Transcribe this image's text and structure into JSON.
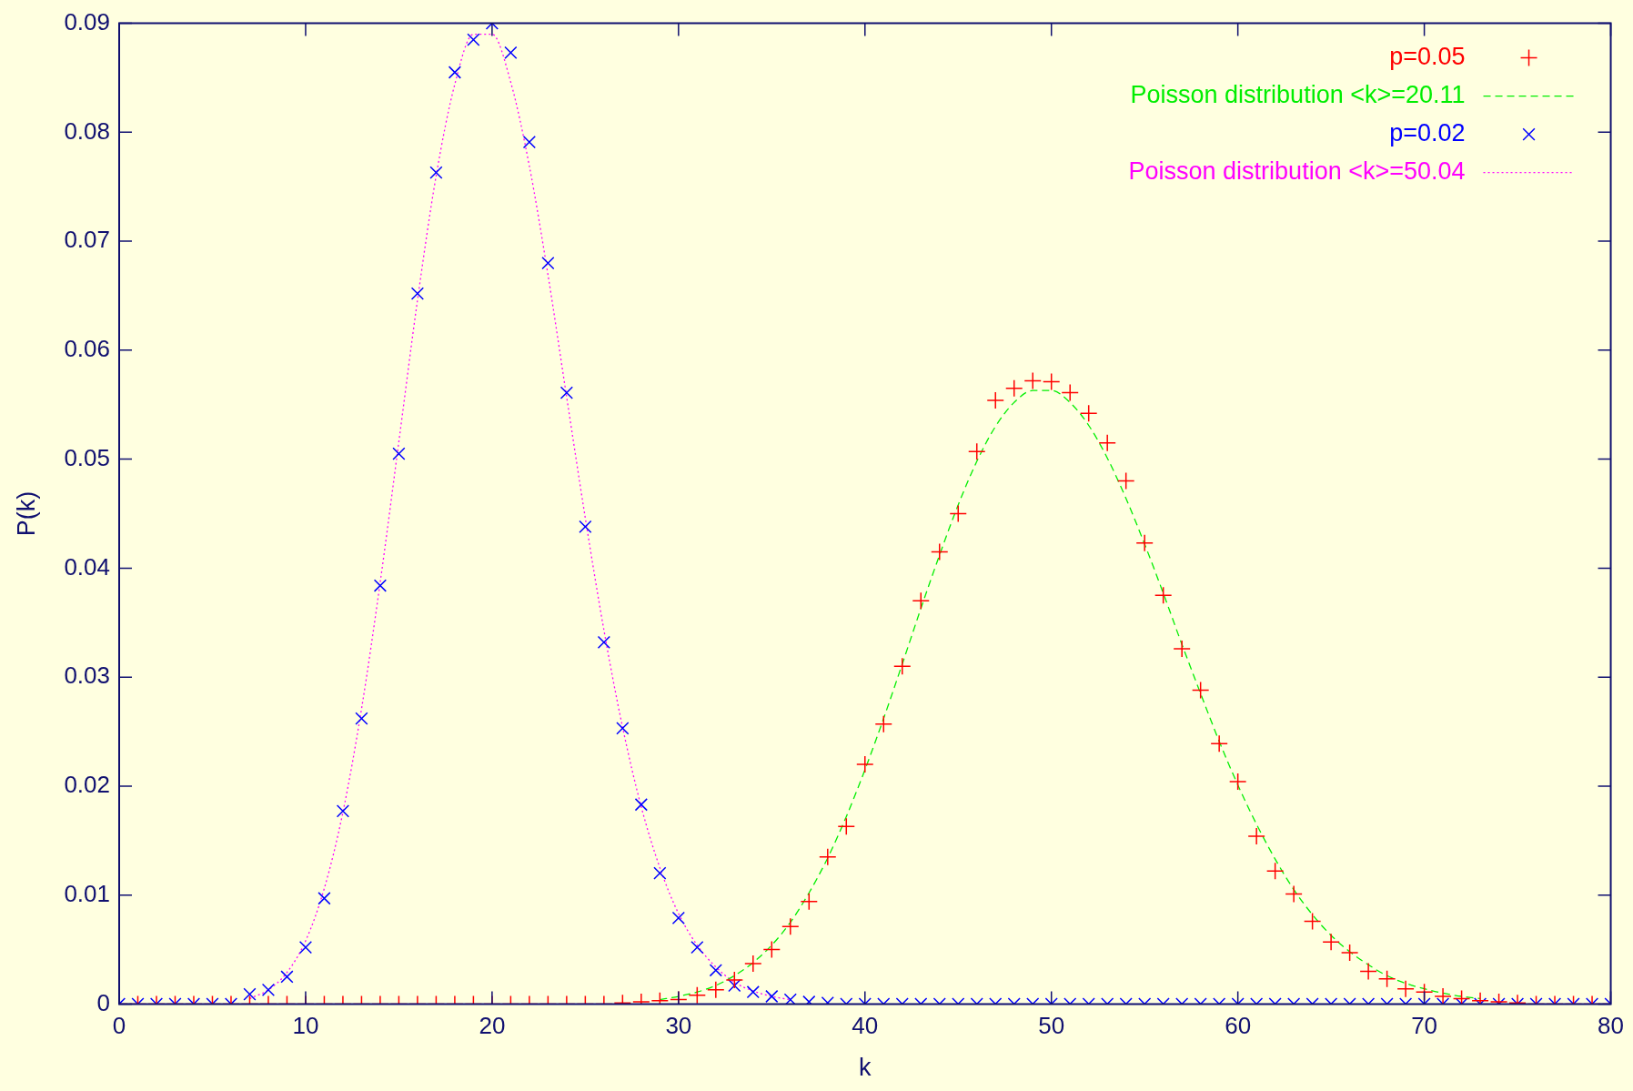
{
  "chart_data": {
    "type": "scatter",
    "xlabel": "k",
    "ylabel": "P(k)",
    "x": [
      0,
      1,
      2,
      3,
      4,
      5,
      6,
      7,
      8,
      9,
      10,
      11,
      12,
      13,
      14,
      15,
      16,
      17,
      18,
      19,
      20,
      21,
      22,
      23,
      24,
      25,
      26,
      27,
      28,
      29,
      30,
      31,
      32,
      33,
      34,
      35,
      36,
      37,
      38,
      39,
      40,
      41,
      42,
      43,
      44,
      45,
      46,
      47,
      48,
      49,
      50,
      51,
      52,
      53,
      54,
      55,
      56,
      57,
      58,
      59,
      60,
      61,
      62,
      63,
      64,
      65,
      66,
      67,
      68,
      69,
      70,
      71,
      72,
      73,
      74,
      75,
      76,
      77,
      78,
      79,
      80
    ],
    "series": [
      {
        "name": "p=0.05",
        "marker": "cross",
        "color": "#ff0000",
        "values": [
          0,
          0,
          0,
          0,
          0,
          0,
          0,
          0,
          0,
          0,
          0,
          0,
          0,
          0,
          0,
          0,
          0,
          0,
          0,
          0,
          0,
          0,
          0,
          0,
          0,
          0,
          0,
          0.0001,
          0.0002,
          0.0003,
          0.0004,
          0.0008,
          0.0013,
          0.0022,
          0.0037,
          0.005,
          0.0071,
          0.0094,
          0.0135,
          0.0163,
          0.022,
          0.0257,
          0.031,
          0.037,
          0.0415,
          0.045,
          0.0507,
          0.0554,
          0.0565,
          0.0572,
          0.0571,
          0.0561,
          0.0542,
          0.0515,
          0.048,
          0.0423,
          0.0375,
          0.0326,
          0.0288,
          0.0239,
          0.0204,
          0.0154,
          0.0122,
          0.0101,
          0.0076,
          0.0057,
          0.0047,
          0.003,
          0.0023,
          0.0014,
          0.0011,
          0.0007,
          0.0005,
          0.0003,
          0.0002,
          0.0001,
          0,
          0,
          0,
          0,
          0
        ]
      },
      {
        "name": "Poisson distribution <k>=20.11",
        "type": "line",
        "marker": "none",
        "line_style": "dashed",
        "color": "#00ee00",
        "x": [
          29,
          30,
          31,
          32,
          33,
          34,
          35,
          36,
          37,
          38,
          39,
          40,
          41,
          42,
          43,
          44,
          45,
          46,
          47,
          48,
          49,
          50,
          51,
          52,
          53,
          54,
          55,
          56,
          57,
          58,
          59,
          60,
          61,
          62,
          63,
          64,
          65,
          66,
          67,
          68,
          69,
          70,
          71,
          72,
          73
        ],
        "values": [
          0.0004,
          0.0007,
          0.0011,
          0.0017,
          0.0026,
          0.0038,
          0.0054,
          0.0075,
          0.0102,
          0.0134,
          0.0172,
          0.0215,
          0.0262,
          0.0312,
          0.0363,
          0.0412,
          0.0458,
          0.0498,
          0.053,
          0.0552,
          0.0563,
          0.0563,
          0.0552,
          0.0531,
          0.0501,
          0.0464,
          0.0422,
          0.0377,
          0.033,
          0.0285,
          0.0241,
          0.0201,
          0.0165,
          0.0133,
          0.0105,
          0.0082,
          0.0063,
          0.0048,
          0.0036,
          0.0026,
          0.0019,
          0.0014,
          0.001,
          0.0007,
          0.0005
        ]
      },
      {
        "name": "p=0.02",
        "marker": "x",
        "color": "#0000ff",
        "values": [
          0,
          0,
          0,
          0,
          0,
          0,
          0,
          0.0009,
          0.0013,
          0.0025,
          0.0052,
          0.0097,
          0.0177,
          0.0262,
          0.0384,
          0.0505,
          0.0652,
          0.0763,
          0.0855,
          0.0885,
          0.09,
          0.0873,
          0.0791,
          0.068,
          0.0561,
          0.0438,
          0.0332,
          0.0253,
          0.0183,
          0.012,
          0.0079,
          0.0052,
          0.0031,
          0.0017,
          0.0011,
          0.0007,
          0.0004,
          0.0002,
          0.0001,
          0,
          0,
          0,
          0,
          0,
          0,
          0,
          0,
          0,
          0,
          0,
          0,
          0,
          0,
          0,
          0,
          0,
          0,
          0,
          0,
          0,
          0,
          0,
          0,
          0,
          0,
          0,
          0,
          0,
          0,
          0,
          0,
          0,
          0,
          0,
          0,
          0,
          0,
          0,
          0,
          0,
          0
        ]
      },
      {
        "name": "Poisson distribution <k>=50.04",
        "type": "line",
        "marker": "none",
        "line_style": "dotted",
        "color": "#ff00ff",
        "x": [
          7,
          8,
          9,
          10,
          11,
          12,
          13,
          14,
          15,
          16,
          17,
          18,
          19,
          20,
          21,
          22,
          23,
          24,
          25,
          26,
          27,
          28,
          29,
          30,
          31,
          32,
          33,
          34,
          35,
          36
        ],
        "values": [
          0.0005,
          0.0013,
          0.0029,
          0.0058,
          0.0106,
          0.0176,
          0.0271,
          0.0387,
          0.0516,
          0.0646,
          0.076,
          0.0844,
          0.089,
          0.089,
          0.0846,
          0.0769,
          0.0669,
          0.0557,
          0.0446,
          0.0343,
          0.0254,
          0.0181,
          0.0125,
          0.0083,
          0.0054,
          0.0034,
          0.002,
          0.0012,
          0.0007,
          0.0004
        ]
      }
    ],
    "xlim": [
      0,
      80
    ],
    "xticks": [
      0,
      10,
      20,
      30,
      40,
      50,
      60,
      70,
      80
    ],
    "ylim": [
      0,
      0.09
    ],
    "yticks": [
      0,
      0.01,
      0.02,
      0.03,
      0.04,
      0.05,
      0.06,
      0.07,
      0.08,
      0.09
    ],
    "grid": false,
    "legend": "top right"
  }
}
